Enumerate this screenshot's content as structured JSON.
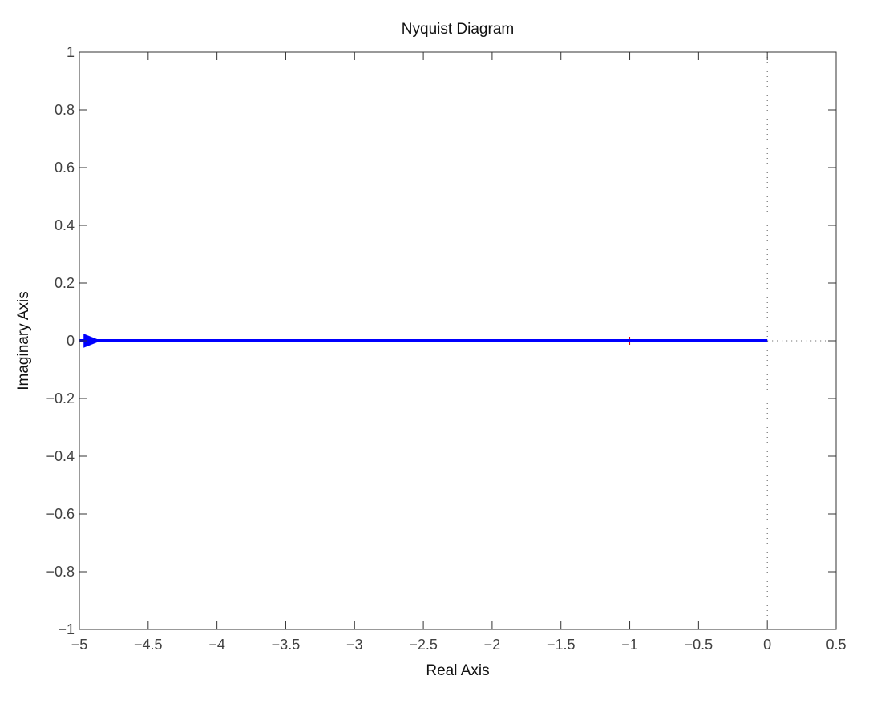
{
  "chart_data": {
    "type": "line",
    "title": "Nyquist Diagram",
    "xlabel": "Real Axis",
    "ylabel": "Imaginary Axis",
    "xlim": [
      -5,
      0.5
    ],
    "ylim": [
      -1,
      1
    ],
    "x_ticks": [
      {
        "value": -5,
        "label": "−5"
      },
      {
        "value": -4.5,
        "label": "−4.5"
      },
      {
        "value": -4,
        "label": "−4"
      },
      {
        "value": -3.5,
        "label": "−3.5"
      },
      {
        "value": -3,
        "label": "−3"
      },
      {
        "value": -2.5,
        "label": "−2.5"
      },
      {
        "value": -2,
        "label": "−2"
      },
      {
        "value": -1.5,
        "label": "−1.5"
      },
      {
        "value": -1,
        "label": "−1"
      },
      {
        "value": -0.5,
        "label": "−0.5"
      },
      {
        "value": 0,
        "label": "0"
      },
      {
        "value": 0.5,
        "label": "0.5"
      }
    ],
    "y_ticks": [
      {
        "value": 1,
        "label": "1"
      },
      {
        "value": 0.8,
        "label": "0.8"
      },
      {
        "value": 0.6,
        "label": "0.6"
      },
      {
        "value": 0.4,
        "label": "0.4"
      },
      {
        "value": 0.2,
        "label": "0.2"
      },
      {
        "value": 0,
        "label": "0"
      },
      {
        "value": -0.2,
        "label": "−0.2"
      },
      {
        "value": -0.4,
        "label": "−0.4"
      },
      {
        "value": -0.6,
        "label": "−0.6"
      },
      {
        "value": -0.8,
        "label": "−0.8"
      },
      {
        "value": -1,
        "label": "−1"
      }
    ],
    "grid": false,
    "series": [
      {
        "color": "#0000ff",
        "x": [
          -5,
          0
        ],
        "y": [
          0,
          0
        ],
        "arrow_at": {
          "x": -4.92,
          "y": 0,
          "direction": "right"
        }
      }
    ],
    "reference_lines": {
      "zero_axes": {
        "x": 0,
        "y": 0,
        "style": "dotted",
        "color": "#555555"
      },
      "critical_point": {
        "x": -1,
        "y": 0,
        "marker": "+",
        "color": "#cc0000"
      }
    }
  }
}
